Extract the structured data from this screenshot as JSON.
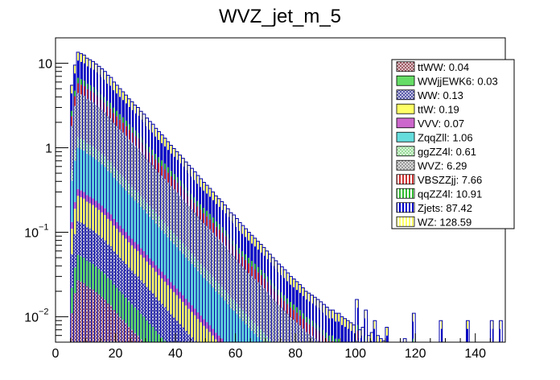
{
  "chart_data": {
    "type": "bar",
    "title": "WVZ_jet_m_5",
    "xlabel": "",
    "ylabel": "",
    "yscale": "log",
    "xlim": [
      0,
      150
    ],
    "ylim": [
      0.005,
      20
    ],
    "bin_width": 1,
    "x_ticks": [
      0,
      20,
      40,
      60,
      80,
      100,
      120,
      140
    ],
    "x_tick_labels": [
      "0",
      "20",
      "40",
      "60",
      "80",
      "100",
      "120",
      "140"
    ],
    "y_ticks": [
      {
        "value": 10,
        "base": "10",
        "exp": ""
      },
      {
        "value": 1,
        "base": "1",
        "exp": ""
      },
      {
        "value": 0.1,
        "base": "10",
        "exp": "−1"
      },
      {
        "value": 0.01,
        "base": "10",
        "exp": "−2"
      }
    ],
    "legend": [
      {
        "name": "ttWW",
        "label": "ttWW: 0.04",
        "color": "#a05a64",
        "pattern": "cross"
      },
      {
        "name": "WWjjEWK6",
        "label": "WWjjEWK6: 0.03",
        "color": "#66dd66",
        "pattern": "solid"
      },
      {
        "name": "WW",
        "label": "WW: 0.13",
        "color": "#5555aa",
        "pattern": "cross"
      },
      {
        "name": "ttW",
        "label": "ttW: 0.19",
        "color": "#ffff66",
        "pattern": "solid"
      },
      {
        "name": "VVV",
        "label": "VVV: 0.07",
        "color": "#cc66cc",
        "pattern": "solid"
      },
      {
        "name": "ZqqZll",
        "label": "ZqqZll: 1.06",
        "color": "#66dddd",
        "pattern": "solid"
      },
      {
        "name": "ggZZ4l",
        "label": "ggZZ4l: 0.61",
        "color": "#99dd99",
        "pattern": "cross"
      },
      {
        "name": "WVZ",
        "label": "WVZ: 6.29",
        "color": "#999999",
        "pattern": "cross"
      },
      {
        "name": "VBSZZjj",
        "label": "VBSZZjj: 7.66",
        "color": "#cc3333",
        "pattern": "vstripe"
      },
      {
        "name": "qqZZ4l",
        "label": "qqZZ4l: 10.91",
        "color": "#33bb33",
        "pattern": "vstripe"
      },
      {
        "name": "Zjets",
        "label": "Zjets: 87.42",
        "color": "#0000cc",
        "pattern": "vstripe"
      },
      {
        "name": "WZ",
        "label": "WZ: 128.59",
        "color": "#ffff66",
        "pattern": "vstripe"
      }
    ],
    "stack_order": [
      "ttWW",
      "WWjjEWK6",
      "WW",
      "ttW",
      "VVV",
      "ZqqZll",
      "ggZZ4l",
      "WVZ",
      "VBSZZjj",
      "qqZZ4l",
      "Zjets",
      "WZ"
    ],
    "totals_approx": {
      "x": [
        5,
        6,
        7,
        8,
        9,
        10,
        11,
        12,
        13,
        14,
        15,
        16,
        17,
        18,
        19,
        20,
        21,
        22,
        23,
        24,
        25,
        26,
        27,
        28,
        29,
        30,
        31,
        32,
        33,
        34,
        35,
        36,
        37,
        38,
        39,
        40,
        41,
        42,
        43,
        44,
        45,
        46,
        47,
        48,
        49,
        50,
        51,
        52,
        53,
        54,
        55,
        56,
        57,
        58,
        59,
        60,
        61,
        62,
        63,
        64,
        65,
        66,
        67,
        68,
        69,
        70,
        71,
        72,
        73,
        74,
        75,
        76,
        77,
        78,
        79,
        80,
        81,
        82,
        83,
        84,
        85,
        86,
        87,
        88,
        89,
        90,
        91,
        92,
        93,
        94,
        95,
        96,
        97,
        98,
        99,
        100,
        101,
        102,
        103,
        104,
        105,
        106,
        107,
        108,
        109,
        110,
        111,
        112,
        113,
        114,
        115,
        116,
        117,
        118,
        119,
        120,
        121,
        122,
        123,
        124,
        125,
        126,
        127,
        128,
        129,
        130,
        131,
        132,
        133,
        134,
        135,
        136,
        137,
        138,
        139,
        140,
        141,
        142,
        143,
        144,
        145,
        146,
        147,
        148,
        149
      ],
      "values": [
        5.5,
        9.5,
        13.5,
        13.0,
        12.5,
        11.5,
        11.0,
        10.5,
        9.8,
        9.2,
        8.6,
        8.0,
        7.2,
        6.8,
        6.0,
        5.5,
        5.0,
        4.6,
        4.2,
        3.8,
        3.5,
        3.2,
        3.0,
        2.7,
        2.5,
        2.25,
        2.05,
        1.9,
        1.7,
        1.55,
        1.42,
        1.3,
        1.18,
        1.07,
        0.98,
        0.9,
        0.82,
        0.75,
        0.68,
        0.62,
        0.57,
        0.52,
        0.47,
        0.43,
        0.39,
        0.36,
        0.33,
        0.3,
        0.27,
        0.25,
        0.23,
        0.21,
        0.19,
        0.17,
        0.16,
        0.145,
        0.13,
        0.12,
        0.11,
        0.1,
        0.092,
        0.085,
        0.078,
        0.072,
        0.066,
        0.06,
        0.055,
        0.05,
        0.046,
        0.042,
        0.039,
        0.036,
        0.033,
        0.03,
        0.028,
        0.026,
        0.024,
        0.022,
        0.02,
        0.019,
        0.018,
        0.017,
        0.016,
        0.015,
        0.014,
        0.013,
        0.012,
        0.012,
        0.011,
        0.011,
        0.01,
        0.0095,
        0.009,
        0.0085,
        0.008,
        0.016,
        0.007,
        0.0075,
        0.012,
        0.006,
        0.0065,
        0.009,
        0.006,
        0.0055,
        0.0052,
        0.0075,
        0.005,
        0.005,
        0.005,
        0.005,
        0.005,
        0.0055,
        0.005,
        0.005,
        0.011,
        0.005,
        0.005,
        0.005,
        0.005,
        0.005,
        0.005,
        0.005,
        0.005,
        0.009,
        0.005,
        0.005,
        0.005,
        0.005,
        0.005,
        0.005,
        0.005,
        0.005,
        0.009,
        0.005,
        0.005,
        0.005,
        0.005,
        0.005,
        0.005,
        0.005,
        0.009,
        0.005,
        0.005,
        0.009,
        0.005
      ]
    }
  }
}
